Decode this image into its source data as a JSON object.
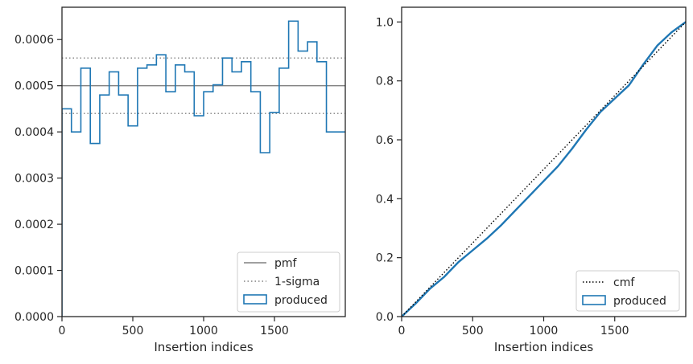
{
  "chart_data": [
    {
      "type": "step",
      "xlabel": "Insertion indices",
      "ylabel": "",
      "xlim": [
        0,
        2000
      ],
      "ylim": [
        0,
        0.00067
      ],
      "xticks": [
        "0",
        "500",
        "1000",
        "1500"
      ],
      "xtick_values": [
        0,
        500,
        1000,
        1500
      ],
      "yticks": [
        "0.0000",
        "0.0001",
        "0.0002",
        "0.0003",
        "0.0004",
        "0.0005",
        "0.0006"
      ],
      "ytick_values": [
        0,
        0.0001,
        0.0002,
        0.0003,
        0.0004,
        0.0005,
        0.0006
      ],
      "legend_position": "lower-right",
      "pmf": 0.0005,
      "sigma_band": [
        0.00044,
        0.00056
      ],
      "bin_width": 66.67,
      "series": [
        {
          "name": "produced",
          "values": [
            0.00045,
            0.0004,
            0.000538,
            0.000375,
            0.00048,
            0.00053,
            0.00048,
            0.000413,
            0.000538,
            0.000545,
            0.000567,
            0.000487,
            0.000545,
            0.00053,
            0.000435,
            0.000487,
            0.000502,
            0.00056,
            0.00053,
            0.000552,
            0.000487,
            0.000355,
            0.000442,
            0.000538,
            0.00064,
            0.000575,
            0.000595,
            0.000552,
            0.0004,
            0.0004
          ]
        }
      ],
      "legend": [
        {
          "label": "pmf",
          "style": "solid",
          "color": "#808080"
        },
        {
          "label": "1-sigma",
          "style": "dotted",
          "color": "#808080"
        },
        {
          "label": "produced",
          "style": "patch",
          "color": "#1f77b4"
        }
      ]
    },
    {
      "type": "line",
      "xlabel": "Insertion indices",
      "ylabel": "",
      "xlim": [
        0,
        2000
      ],
      "ylim": [
        0,
        1.05
      ],
      "xticks": [
        "0",
        "500",
        "1000",
        "1500"
      ],
      "xtick_values": [
        0,
        500,
        1000,
        1500
      ],
      "yticks": [
        "0.0",
        "0.2",
        "0.4",
        "0.6",
        "0.8",
        "1.0"
      ],
      "ytick_values": [
        0,
        0.2,
        0.4,
        0.6,
        0.8,
        1.0
      ],
      "legend_position": "lower-right",
      "series": [
        {
          "name": "produced",
          "x": [
            0,
            100,
            200,
            300,
            400,
            500,
            600,
            700,
            800,
            900,
            1000,
            1100,
            1200,
            1300,
            1400,
            1500,
            1600,
            1700,
            1800,
            1900,
            2000
          ],
          "values": [
            0,
            0.045,
            0.095,
            0.135,
            0.185,
            0.225,
            0.265,
            0.31,
            0.36,
            0.41,
            0.46,
            0.51,
            0.57,
            0.635,
            0.695,
            0.74,
            0.785,
            0.855,
            0.92,
            0.965,
            1.0
          ]
        },
        {
          "name": "cmf",
          "x": [
            0,
            2000
          ],
          "values": [
            0,
            1.0
          ]
        }
      ],
      "legend": [
        {
          "label": "cmf",
          "style": "dotted",
          "color": "#000000"
        },
        {
          "label": "produced",
          "style": "patch",
          "color": "#1f77b4"
        }
      ]
    }
  ]
}
